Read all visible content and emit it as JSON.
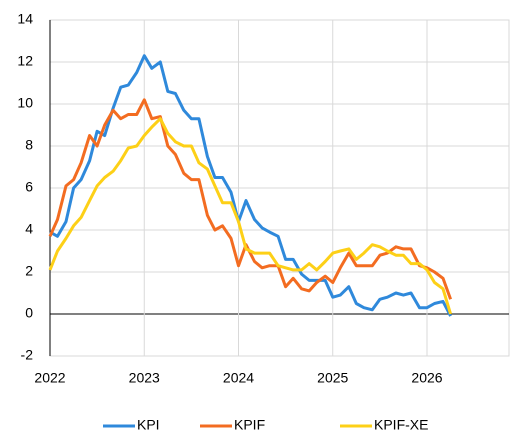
{
  "chart_data": {
    "type": "line",
    "x": [
      2022,
      2022.08,
      2022.17,
      2022.25,
      2022.33,
      2022.42,
      2022.5,
      2022.58,
      2022.67,
      2022.75,
      2022.83,
      2022.92,
      2023,
      2023.08,
      2023.17,
      2023.25,
      2023.33,
      2023.42,
      2023.5,
      2023.58,
      2023.67,
      2023.75,
      2023.83,
      2023.92,
      2024,
      2024.08,
      2024.17,
      2024.25,
      2024.33,
      2024.42,
      2024.5,
      2024.58,
      2024.67,
      2024.75,
      2024.83,
      2024.92,
      2025,
      2025.08,
      2025.17,
      2025.25,
      2025.33,
      2025.42,
      2025.5,
      2025.58,
      2025.67,
      2025.75,
      2025.83,
      2025.92,
      2026,
      2026.08,
      2026.17,
      2026.25
    ],
    "series": [
      {
        "name": "KPI",
        "color": "#2f89db",
        "values": [
          3.9,
          3.7,
          4.4,
          6.0,
          6.4,
          7.3,
          8.7,
          8.5,
          9.8,
          10.8,
          10.9,
          11.5,
          12.3,
          11.7,
          12.0,
          10.6,
          10.5,
          9.7,
          9.3,
          9.3,
          7.5,
          6.5,
          6.5,
          5.8,
          4.4,
          5.4,
          4.5,
          4.1,
          3.9,
          3.7,
          2.6,
          2.6,
          1.9,
          1.6,
          1.6,
          1.6,
          0.8,
          0.9,
          1.3,
          0.5,
          0.3,
          0.2,
          0.7,
          0.8,
          1.0,
          0.9,
          1.0,
          0.3,
          0.3,
          0.5,
          0.6,
          -0.1
        ]
      },
      {
        "name": "KPIF",
        "color": "#f36c21",
        "values": [
          3.7,
          4.5,
          6.1,
          6.4,
          7.2,
          8.5,
          8.0,
          9.0,
          9.7,
          9.3,
          9.5,
          9.5,
          10.2,
          9.3,
          9.4,
          8.0,
          7.6,
          6.7,
          6.4,
          6.4,
          4.7,
          4.0,
          4.2,
          3.6,
          2.3,
          3.3,
          2.5,
          2.2,
          2.3,
          2.3,
          1.3,
          1.7,
          1.2,
          1.1,
          1.5,
          1.8,
          1.5,
          2.2,
          2.9,
          2.3,
          2.3,
          2.3,
          2.8,
          2.9,
          3.2,
          3.1,
          3.1,
          2.3,
          2.2,
          2.0,
          1.7,
          0.7
        ]
      },
      {
        "name": "KPIF-XE",
        "color": "#fdd017",
        "values": [
          2.1,
          3.0,
          3.6,
          4.2,
          4.6,
          5.4,
          6.1,
          6.5,
          6.8,
          7.3,
          7.9,
          8.0,
          8.5,
          8.9,
          9.3,
          8.6,
          8.2,
          8.0,
          8.0,
          7.2,
          6.9,
          6.1,
          5.3,
          5.3,
          4.4,
          3.1,
          2.9,
          2.9,
          2.9,
          2.3,
          2.2,
          2.1,
          2.1,
          2.4,
          2.1,
          2.5,
          2.9,
          3.0,
          3.1,
          2.6,
          2.9,
          3.3,
          3.2,
          3.0,
          2.8,
          2.8,
          2.4,
          2.4,
          2.1,
          1.5,
          1.2,
          0.0
        ]
      }
    ],
    "xlim": [
      2022,
      2026.87
    ],
    "xticks": [
      2022,
      2023,
      2024,
      2025,
      2026
    ],
    "ylim": [
      -2,
      14
    ],
    "yticks": [
      -2,
      0,
      2,
      4,
      6,
      8,
      10,
      12,
      14
    ],
    "grid": true,
    "legend": "bottom"
  }
}
